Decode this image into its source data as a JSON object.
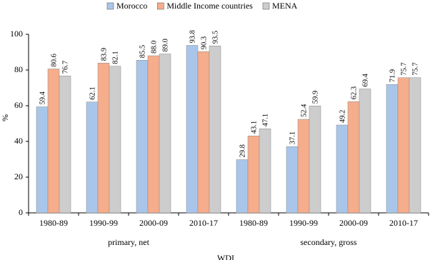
{
  "chart_data": {
    "type": "bar",
    "y_label": "%",
    "source": "WDI",
    "categories": [
      "1980-89",
      "1990-99",
      "2000-09",
      "2010-17",
      "1980-89",
      "1990-99",
      "2000-09",
      "2010-17"
    ],
    "group_labels": [
      "primary, net",
      "secondary, gross"
    ],
    "series": [
      {
        "name": "Morocco",
        "color": "#a9c6ea",
        "values": [
          59.4,
          62.1,
          85.5,
          93.8,
          29.8,
          37.1,
          49.2,
          71.9
        ],
        "value_labels": [
          "59.4",
          "62.1",
          "85.5",
          "93.8",
          "29.8",
          "37.1",
          "49.2",
          "71.9"
        ]
      },
      {
        "name": "Middle Income countries",
        "color": "#f6ad8c",
        "values": [
          80.6,
          83.9,
          88.0,
          90.3,
          43.1,
          52.4,
          62.3,
          75.7
        ],
        "value_labels": [
          "80.6",
          "83.9",
          "88.0",
          "90.3",
          "43.1",
          "52.4",
          "62.3",
          "75.7"
        ]
      },
      {
        "name": "MENA",
        "color": "#cdcdcd",
        "values": [
          76.7,
          82.1,
          89.0,
          93.5,
          47.1,
          59.9,
          69.4,
          75.7
        ],
        "value_labels": [
          "76.7",
          "82.1",
          "89.0",
          "93.5",
          "47.1",
          "59.9",
          "69.4",
          "75.7"
        ]
      }
    ],
    "ylim": [
      0,
      100
    ],
    "yticks": [
      0,
      20,
      40,
      60,
      80,
      100
    ],
    "grid": false,
    "legend": "top"
  }
}
